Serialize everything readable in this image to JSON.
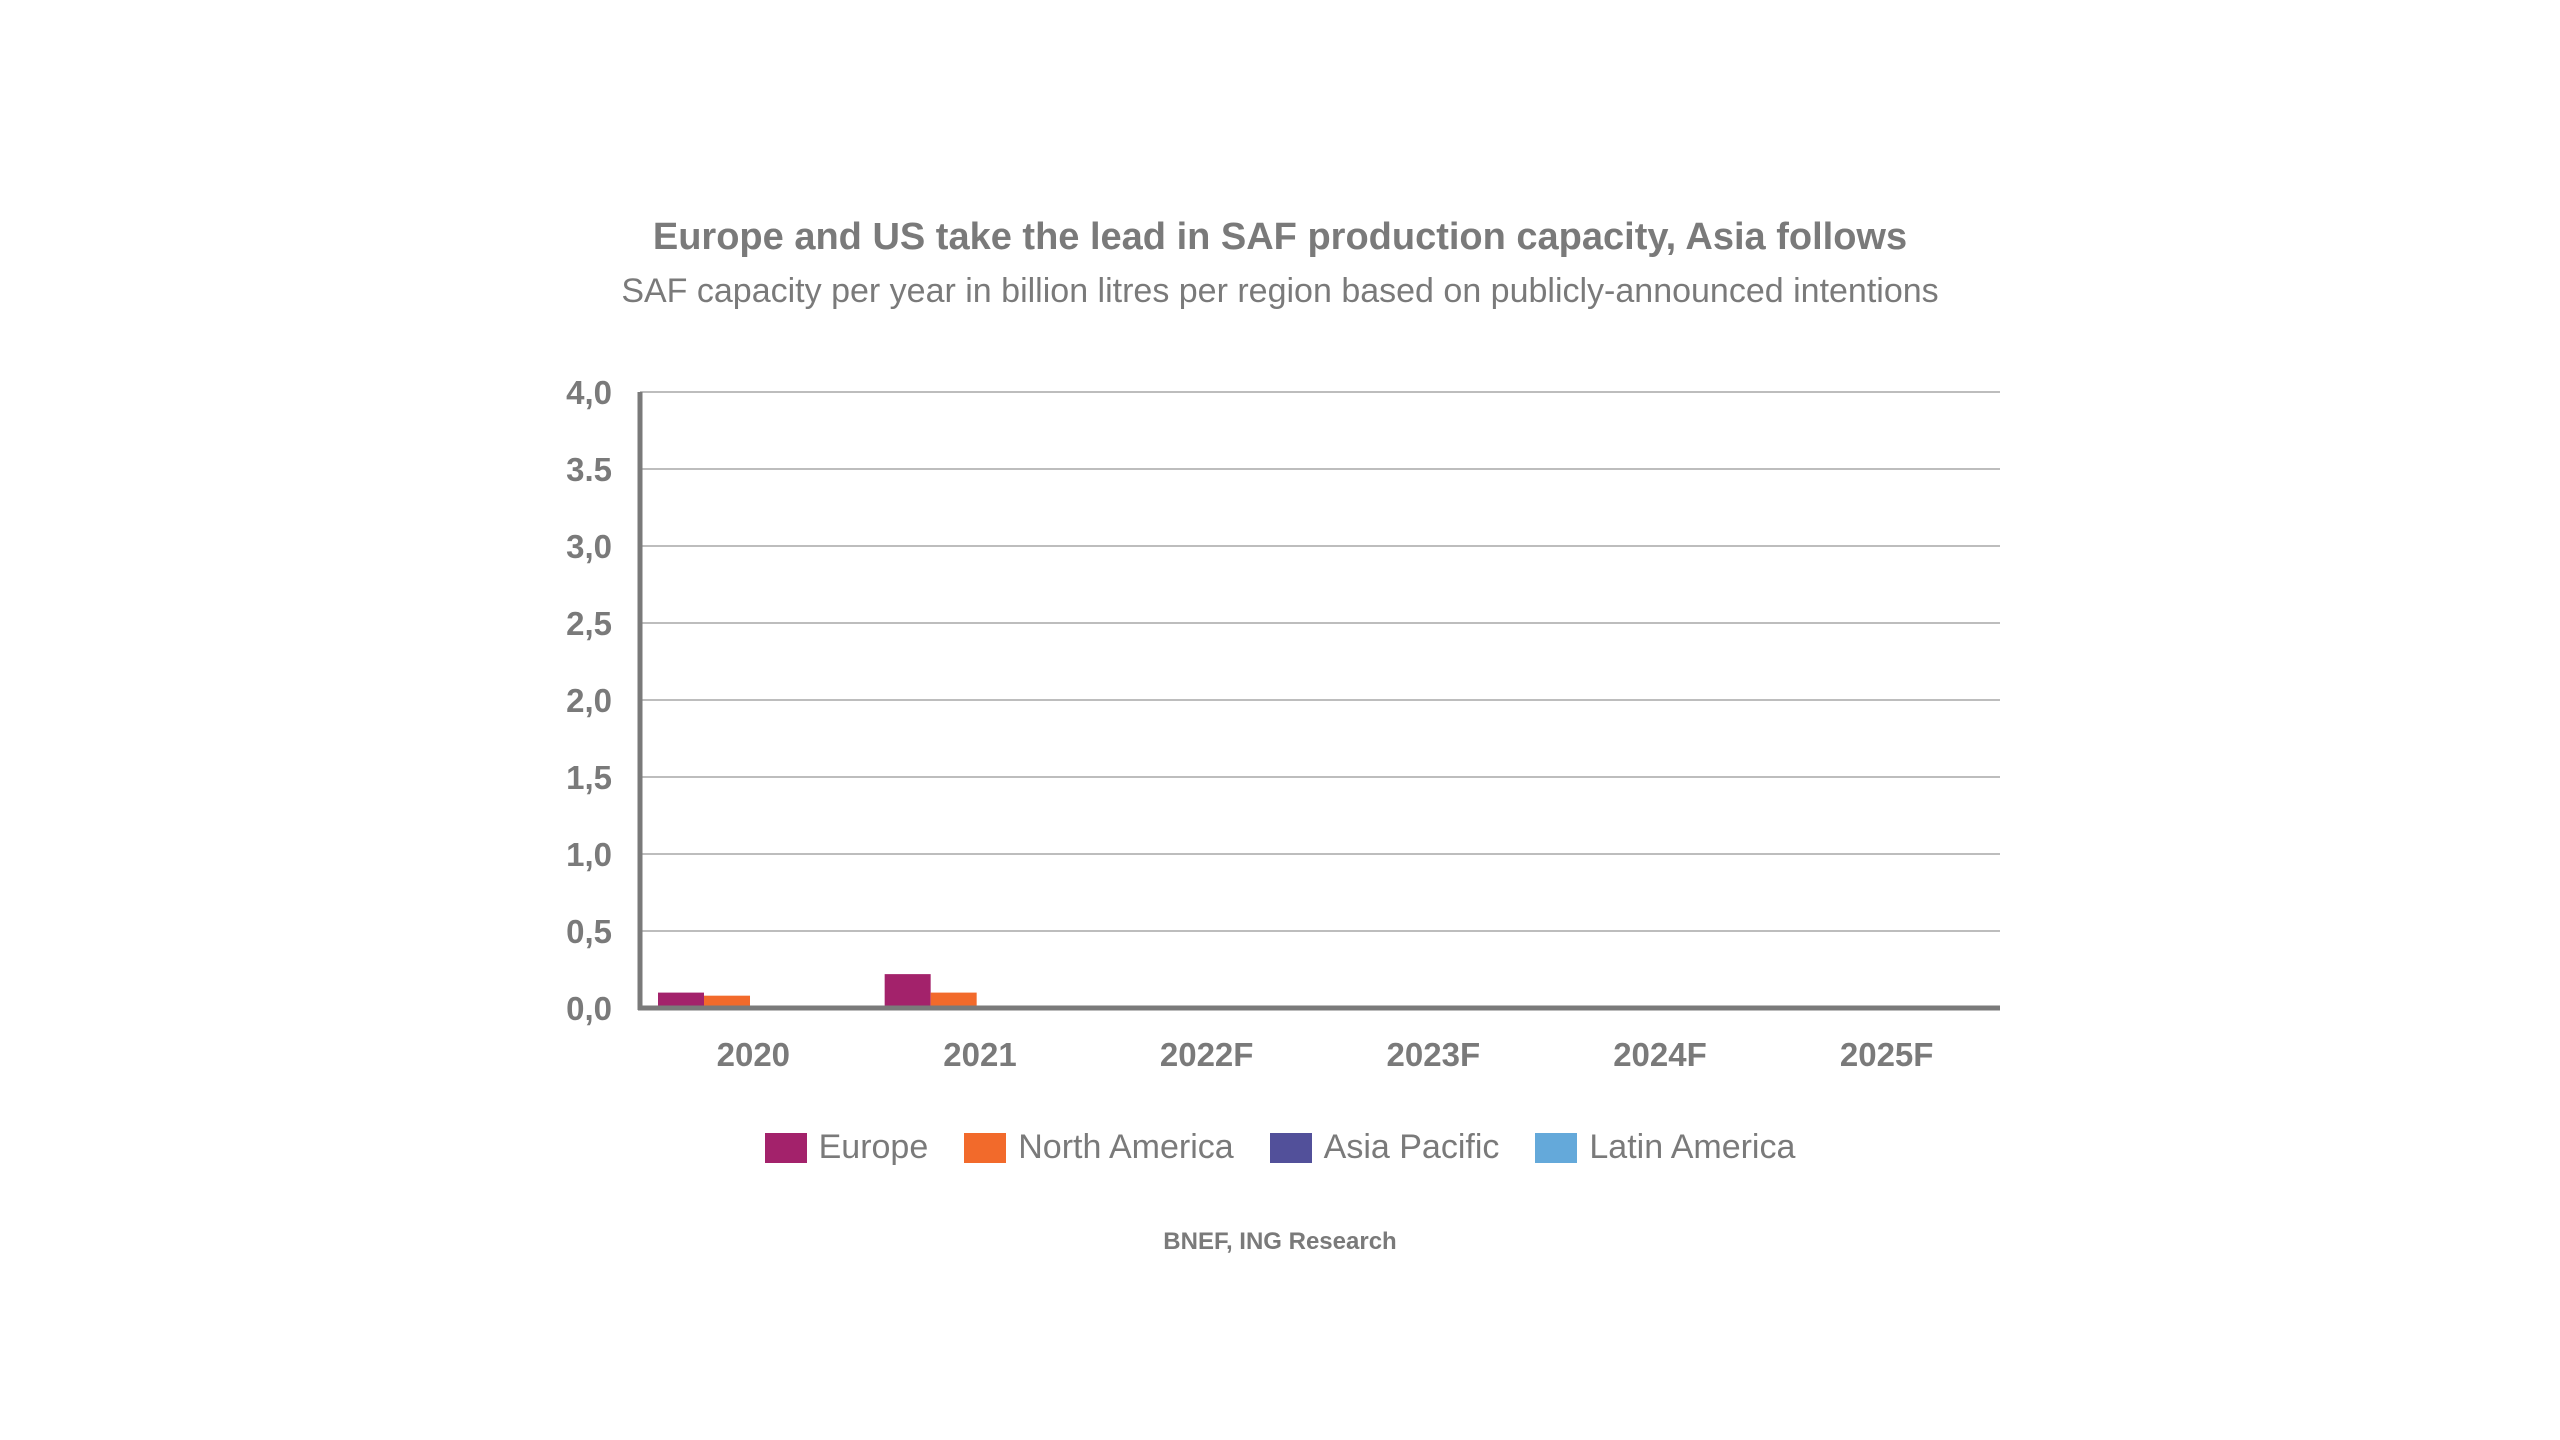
{
  "chart_data": {
    "type": "bar",
    "title": "Europe and US take the lead in SAF production capacity, Asia follows",
    "subtitle": "SAF capacity per year in billion litres per region based on publicly-announced intentions",
    "source": "BNEF, ING Research",
    "categories": [
      "2020",
      "2021",
      "2022F",
      "2023F",
      "2024F",
      "2025F"
    ],
    "y_ticks": [
      "0,0",
      "0,5",
      "1,0",
      "1,5",
      "2,0",
      "2,5",
      "3,0",
      "3.5",
      "4,0"
    ],
    "ylim": [
      0,
      4
    ],
    "grid": true,
    "legend_position": "bottom",
    "series": [
      {
        "name": "Europe",
        "color": "#a3226b",
        "values": [
          0.1,
          0.22,
          0,
          0,
          0,
          0
        ]
      },
      {
        "name": "North America",
        "color": "#f26a2b",
        "values": [
          0.08,
          0.1,
          0,
          0,
          0,
          0
        ]
      },
      {
        "name": "Asia Pacific",
        "color": "#52509a",
        "values": [
          0,
          0,
          0,
          0,
          0,
          0
        ]
      },
      {
        "name": "Latin America",
        "color": "#64a9da",
        "values": [
          0,
          0,
          0,
          0,
          0,
          0
        ]
      }
    ],
    "axis_color": "#7a7a7a",
    "grid_color": "#bdbdbd"
  }
}
